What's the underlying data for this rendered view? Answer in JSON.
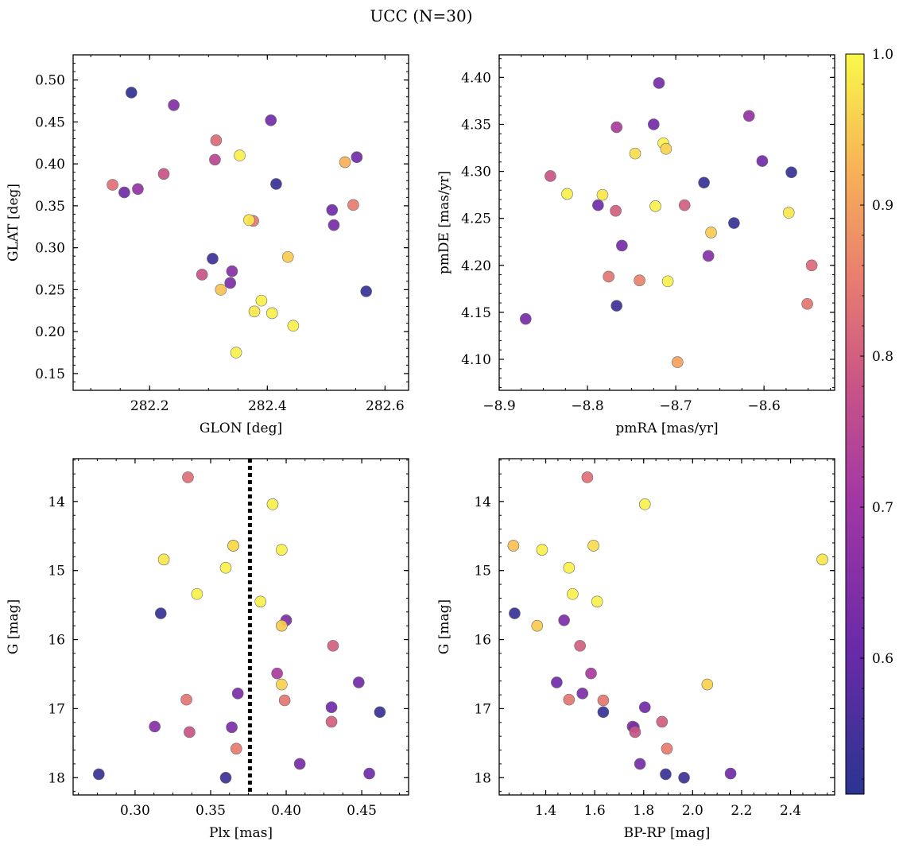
{
  "title": "UCC (N=30)",
  "colorbar": {
    "min": 0.51,
    "max": 1.0,
    "ticks": [
      0.6,
      0.7,
      0.8,
      0.9,
      1.0
    ],
    "tick_labels": [
      "0.6",
      "0.7",
      "0.8",
      "0.9",
      "1.0"
    ]
  },
  "chart_data": [
    {
      "type": "scatter",
      "id": "glon-glat",
      "xlabel": "GLON [deg]",
      "ylabel": "GLAT [deg]",
      "xlim": [
        282.07,
        282.64
      ],
      "ylim": [
        0.13,
        0.53
      ],
      "y_inverted": false,
      "xticks": [
        282.2,
        282.4,
        282.6
      ],
      "xtick_labels": [
        "282.2",
        "282.4",
        "282.6"
      ],
      "yticks": [
        0.15,
        0.2,
        0.25,
        0.3,
        0.35,
        0.4,
        0.45,
        0.5
      ],
      "ytick_labels": [
        "0.15",
        "0.20",
        "0.25",
        "0.30",
        "0.35",
        "0.40",
        "0.45",
        "0.50"
      ],
      "points": [
        {
          "x": 282.169,
          "y": 0.485,
          "c": 0.52
        },
        {
          "x": 282.241,
          "y": 0.47,
          "c": 0.65
        },
        {
          "x": 282.406,
          "y": 0.452,
          "c": 0.62
        },
        {
          "x": 282.313,
          "y": 0.428,
          "c": 0.82
        },
        {
          "x": 282.353,
          "y": 0.41,
          "c": 0.99
        },
        {
          "x": 282.552,
          "y": 0.408,
          "c": 0.62
        },
        {
          "x": 282.311,
          "y": 0.405,
          "c": 0.75
        },
        {
          "x": 282.532,
          "y": 0.402,
          "c": 0.92
        },
        {
          "x": 282.224,
          "y": 0.388,
          "c": 0.78
        },
        {
          "x": 282.415,
          "y": 0.376,
          "c": 0.53
        },
        {
          "x": 282.137,
          "y": 0.375,
          "c": 0.83
        },
        {
          "x": 282.18,
          "y": 0.37,
          "c": 0.68
        },
        {
          "x": 282.157,
          "y": 0.366,
          "c": 0.62
        },
        {
          "x": 282.546,
          "y": 0.351,
          "c": 0.85
        },
        {
          "x": 282.51,
          "y": 0.345,
          "c": 0.62
        },
        {
          "x": 282.376,
          "y": 0.332,
          "c": 0.84
        },
        {
          "x": 282.369,
          "y": 0.333,
          "c": 0.98
        },
        {
          "x": 282.513,
          "y": 0.327,
          "c": 0.63
        },
        {
          "x": 282.435,
          "y": 0.289,
          "c": 0.95
        },
        {
          "x": 282.307,
          "y": 0.287,
          "c": 0.54
        },
        {
          "x": 282.34,
          "y": 0.272,
          "c": 0.66
        },
        {
          "x": 282.289,
          "y": 0.268,
          "c": 0.78
        },
        {
          "x": 282.337,
          "y": 0.258,
          "c": 0.64
        },
        {
          "x": 282.321,
          "y": 0.25,
          "c": 0.94
        },
        {
          "x": 282.568,
          "y": 0.248,
          "c": 0.53
        },
        {
          "x": 282.39,
          "y": 0.237,
          "c": 0.99
        },
        {
          "x": 282.378,
          "y": 0.224,
          "c": 0.98
        },
        {
          "x": 282.408,
          "y": 0.222,
          "c": 0.99
        },
        {
          "x": 282.444,
          "y": 0.207,
          "c": 0.99
        },
        {
          "x": 282.347,
          "y": 0.175,
          "c": 0.99
        }
      ]
    },
    {
      "type": "scatter",
      "id": "pmra-pmde",
      "xlabel": "pmRA [mas/yr]",
      "ylabel": "pmDE [mas/yr]",
      "xlim": [
        -8.9,
        -8.52
      ],
      "ylim": [
        4.067,
        4.424
      ],
      "y_inverted": false,
      "xticks": [
        -8.9,
        -8.8,
        -8.7,
        -8.6
      ],
      "xtick_labels": [
        "−8.9",
        "−8.8",
        "−8.7",
        "−8.6"
      ],
      "yticks": [
        4.1,
        4.15,
        4.2,
        4.25,
        4.3,
        4.35,
        4.4
      ],
      "ytick_labels": [
        "4.10",
        "4.15",
        "4.20",
        "4.25",
        "4.30",
        "4.35",
        "4.40"
      ],
      "points": [
        {
          "x": -8.719,
          "y": 4.394,
          "c": 0.63
        },
        {
          "x": -8.617,
          "y": 4.359,
          "c": 0.68
        },
        {
          "x": -8.767,
          "y": 4.347,
          "c": 0.72
        },
        {
          "x": -8.725,
          "y": 4.35,
          "c": 0.62
        },
        {
          "x": -8.714,
          "y": 4.33,
          "c": 0.99
        },
        {
          "x": -8.711,
          "y": 4.324,
          "c": 0.96
        },
        {
          "x": -8.746,
          "y": 4.319,
          "c": 0.97
        },
        {
          "x": -8.602,
          "y": 4.311,
          "c": 0.62
        },
        {
          "x": -8.569,
          "y": 4.299,
          "c": 0.53
        },
        {
          "x": -8.842,
          "y": 4.295,
          "c": 0.78
        },
        {
          "x": -8.668,
          "y": 4.288,
          "c": 0.53
        },
        {
          "x": -8.823,
          "y": 4.276,
          "c": 0.99
        },
        {
          "x": -8.783,
          "y": 4.275,
          "c": 0.98
        },
        {
          "x": -8.788,
          "y": 4.264,
          "c": 0.62
        },
        {
          "x": -8.723,
          "y": 4.263,
          "c": 0.99
        },
        {
          "x": -8.69,
          "y": 4.264,
          "c": 0.8
        },
        {
          "x": -8.768,
          "y": 4.258,
          "c": 0.8
        },
        {
          "x": -8.572,
          "y": 4.256,
          "c": 0.98
        },
        {
          "x": -8.634,
          "y": 4.245,
          "c": 0.53
        },
        {
          "x": -8.66,
          "y": 4.235,
          "c": 0.95
        },
        {
          "x": -8.761,
          "y": 4.221,
          "c": 0.63
        },
        {
          "x": -8.663,
          "y": 4.21,
          "c": 0.66
        },
        {
          "x": -8.546,
          "y": 4.2,
          "c": 0.82
        },
        {
          "x": -8.776,
          "y": 4.188,
          "c": 0.84
        },
        {
          "x": -8.741,
          "y": 4.184,
          "c": 0.86
        },
        {
          "x": -8.709,
          "y": 4.183,
          "c": 0.99
        },
        {
          "x": -8.551,
          "y": 4.159,
          "c": 0.84
        },
        {
          "x": -8.767,
          "y": 4.157,
          "c": 0.54
        },
        {
          "x": -8.87,
          "y": 4.143,
          "c": 0.63
        },
        {
          "x": -8.698,
          "y": 4.097,
          "c": 0.9
        }
      ]
    },
    {
      "type": "scatter",
      "id": "plx-g",
      "xlabel": "Plx [mas]",
      "ylabel": "G [mag]",
      "xlim": [
        0.259,
        0.481
      ],
      "ylim": [
        18.25,
        13.38
      ],
      "y_inverted": true,
      "vline": {
        "x": 0.376,
        "style": "dotted"
      },
      "xticks": [
        0.3,
        0.35,
        0.4,
        0.45
      ],
      "xtick_labels": [
        "0.30",
        "0.35",
        "0.40",
        "0.45"
      ],
      "yticks": [
        14,
        15,
        16,
        17,
        18
      ],
      "ytick_labels": [
        "14",
        "15",
        "16",
        "17",
        "18"
      ],
      "points": [
        {
          "x": 0.335,
          "y": 13.65,
          "c": 0.83
        },
        {
          "x": 0.391,
          "y": 14.04,
          "c": 0.99
        },
        {
          "x": 0.365,
          "y": 14.64,
          "c": 0.94
        },
        {
          "x": 0.365,
          "y": 14.64,
          "c": 0.97
        },
        {
          "x": 0.397,
          "y": 14.7,
          "c": 0.99
        },
        {
          "x": 0.319,
          "y": 14.84,
          "c": 0.98
        },
        {
          "x": 0.36,
          "y": 14.96,
          "c": 0.99
        },
        {
          "x": 0.341,
          "y": 15.34,
          "c": 0.99
        },
        {
          "x": 0.383,
          "y": 15.45,
          "c": 0.99
        },
        {
          "x": 0.317,
          "y": 15.62,
          "c": 0.53
        },
        {
          "x": 0.4,
          "y": 15.72,
          "c": 0.64
        },
        {
          "x": 0.397,
          "y": 15.8,
          "c": 0.95
        },
        {
          "x": 0.431,
          "y": 16.09,
          "c": 0.8
        },
        {
          "x": 0.394,
          "y": 16.49,
          "c": 0.72
        },
        {
          "x": 0.448,
          "y": 16.62,
          "c": 0.62
        },
        {
          "x": 0.397,
          "y": 16.65,
          "c": 0.96
        },
        {
          "x": 0.368,
          "y": 16.78,
          "c": 0.64
        },
        {
          "x": 0.334,
          "y": 16.87,
          "c": 0.84
        },
        {
          "x": 0.399,
          "y": 16.88,
          "c": 0.84
        },
        {
          "x": 0.43,
          "y": 16.98,
          "c": 0.62
        },
        {
          "x": 0.462,
          "y": 17.05,
          "c": 0.53
        },
        {
          "x": 0.43,
          "y": 17.19,
          "c": 0.8
        },
        {
          "x": 0.313,
          "y": 17.26,
          "c": 0.66
        },
        {
          "x": 0.364,
          "y": 17.27,
          "c": 0.64
        },
        {
          "x": 0.336,
          "y": 17.34,
          "c": 0.78
        },
        {
          "x": 0.367,
          "y": 17.58,
          "c": 0.85
        },
        {
          "x": 0.409,
          "y": 17.8,
          "c": 0.63
        },
        {
          "x": 0.276,
          "y": 17.95,
          "c": 0.53
        },
        {
          "x": 0.455,
          "y": 17.94,
          "c": 0.62
        },
        {
          "x": 0.36,
          "y": 18.0,
          "c": 0.54
        }
      ]
    },
    {
      "type": "scatter",
      "id": "bprp-g",
      "xlabel": "BP-RP [mag]",
      "ylabel": "G [mag]",
      "xlim": [
        1.21,
        2.58
      ],
      "ylim": [
        18.25,
        13.38
      ],
      "y_inverted": true,
      "xticks": [
        1.4,
        1.6,
        1.8,
        2.0,
        2.2,
        2.4
      ],
      "xtick_labels": [
        "1.4",
        "1.6",
        "1.8",
        "2.0",
        "2.2",
        "2.4"
      ],
      "yticks": [
        14,
        15,
        16,
        17,
        18
      ],
      "ytick_labels": [
        "14",
        "15",
        "16",
        "17",
        "18"
      ],
      "points": [
        {
          "x": 1.57,
          "y": 13.65,
          "c": 0.83
        },
        {
          "x": 1.805,
          "y": 14.04,
          "c": 0.99
        },
        {
          "x": 1.268,
          "y": 14.64,
          "c": 0.94
        },
        {
          "x": 1.595,
          "y": 14.64,
          "c": 0.97
        },
        {
          "x": 1.385,
          "y": 14.7,
          "c": 0.99
        },
        {
          "x": 2.53,
          "y": 14.84,
          "c": 0.98
        },
        {
          "x": 1.495,
          "y": 14.96,
          "c": 0.99
        },
        {
          "x": 1.51,
          "y": 15.34,
          "c": 0.99
        },
        {
          "x": 1.61,
          "y": 15.45,
          "c": 0.99
        },
        {
          "x": 1.273,
          "y": 15.62,
          "c": 0.53
        },
        {
          "x": 1.475,
          "y": 15.72,
          "c": 0.64
        },
        {
          "x": 1.365,
          "y": 15.8,
          "c": 0.95
        },
        {
          "x": 1.54,
          "y": 16.09,
          "c": 0.8
        },
        {
          "x": 1.585,
          "y": 16.49,
          "c": 0.72
        },
        {
          "x": 1.445,
          "y": 16.62,
          "c": 0.62
        },
        {
          "x": 2.06,
          "y": 16.65,
          "c": 0.96
        },
        {
          "x": 1.55,
          "y": 16.78,
          "c": 0.64
        },
        {
          "x": 1.495,
          "y": 16.87,
          "c": 0.84
        },
        {
          "x": 1.635,
          "y": 16.88,
          "c": 0.84
        },
        {
          "x": 1.805,
          "y": 16.98,
          "c": 0.62
        },
        {
          "x": 1.635,
          "y": 17.05,
          "c": 0.53
        },
        {
          "x": 1.875,
          "y": 17.19,
          "c": 0.8
        },
        {
          "x": 1.755,
          "y": 17.26,
          "c": 0.66
        },
        {
          "x": 1.76,
          "y": 17.27,
          "c": 0.64
        },
        {
          "x": 1.765,
          "y": 17.34,
          "c": 0.78
        },
        {
          "x": 1.895,
          "y": 17.58,
          "c": 0.85
        },
        {
          "x": 1.785,
          "y": 17.8,
          "c": 0.63
        },
        {
          "x": 1.89,
          "y": 17.95,
          "c": 0.53
        },
        {
          "x": 2.155,
          "y": 17.94,
          "c": 0.62
        },
        {
          "x": 1.965,
          "y": 18.0,
          "c": 0.54
        }
      ]
    }
  ]
}
